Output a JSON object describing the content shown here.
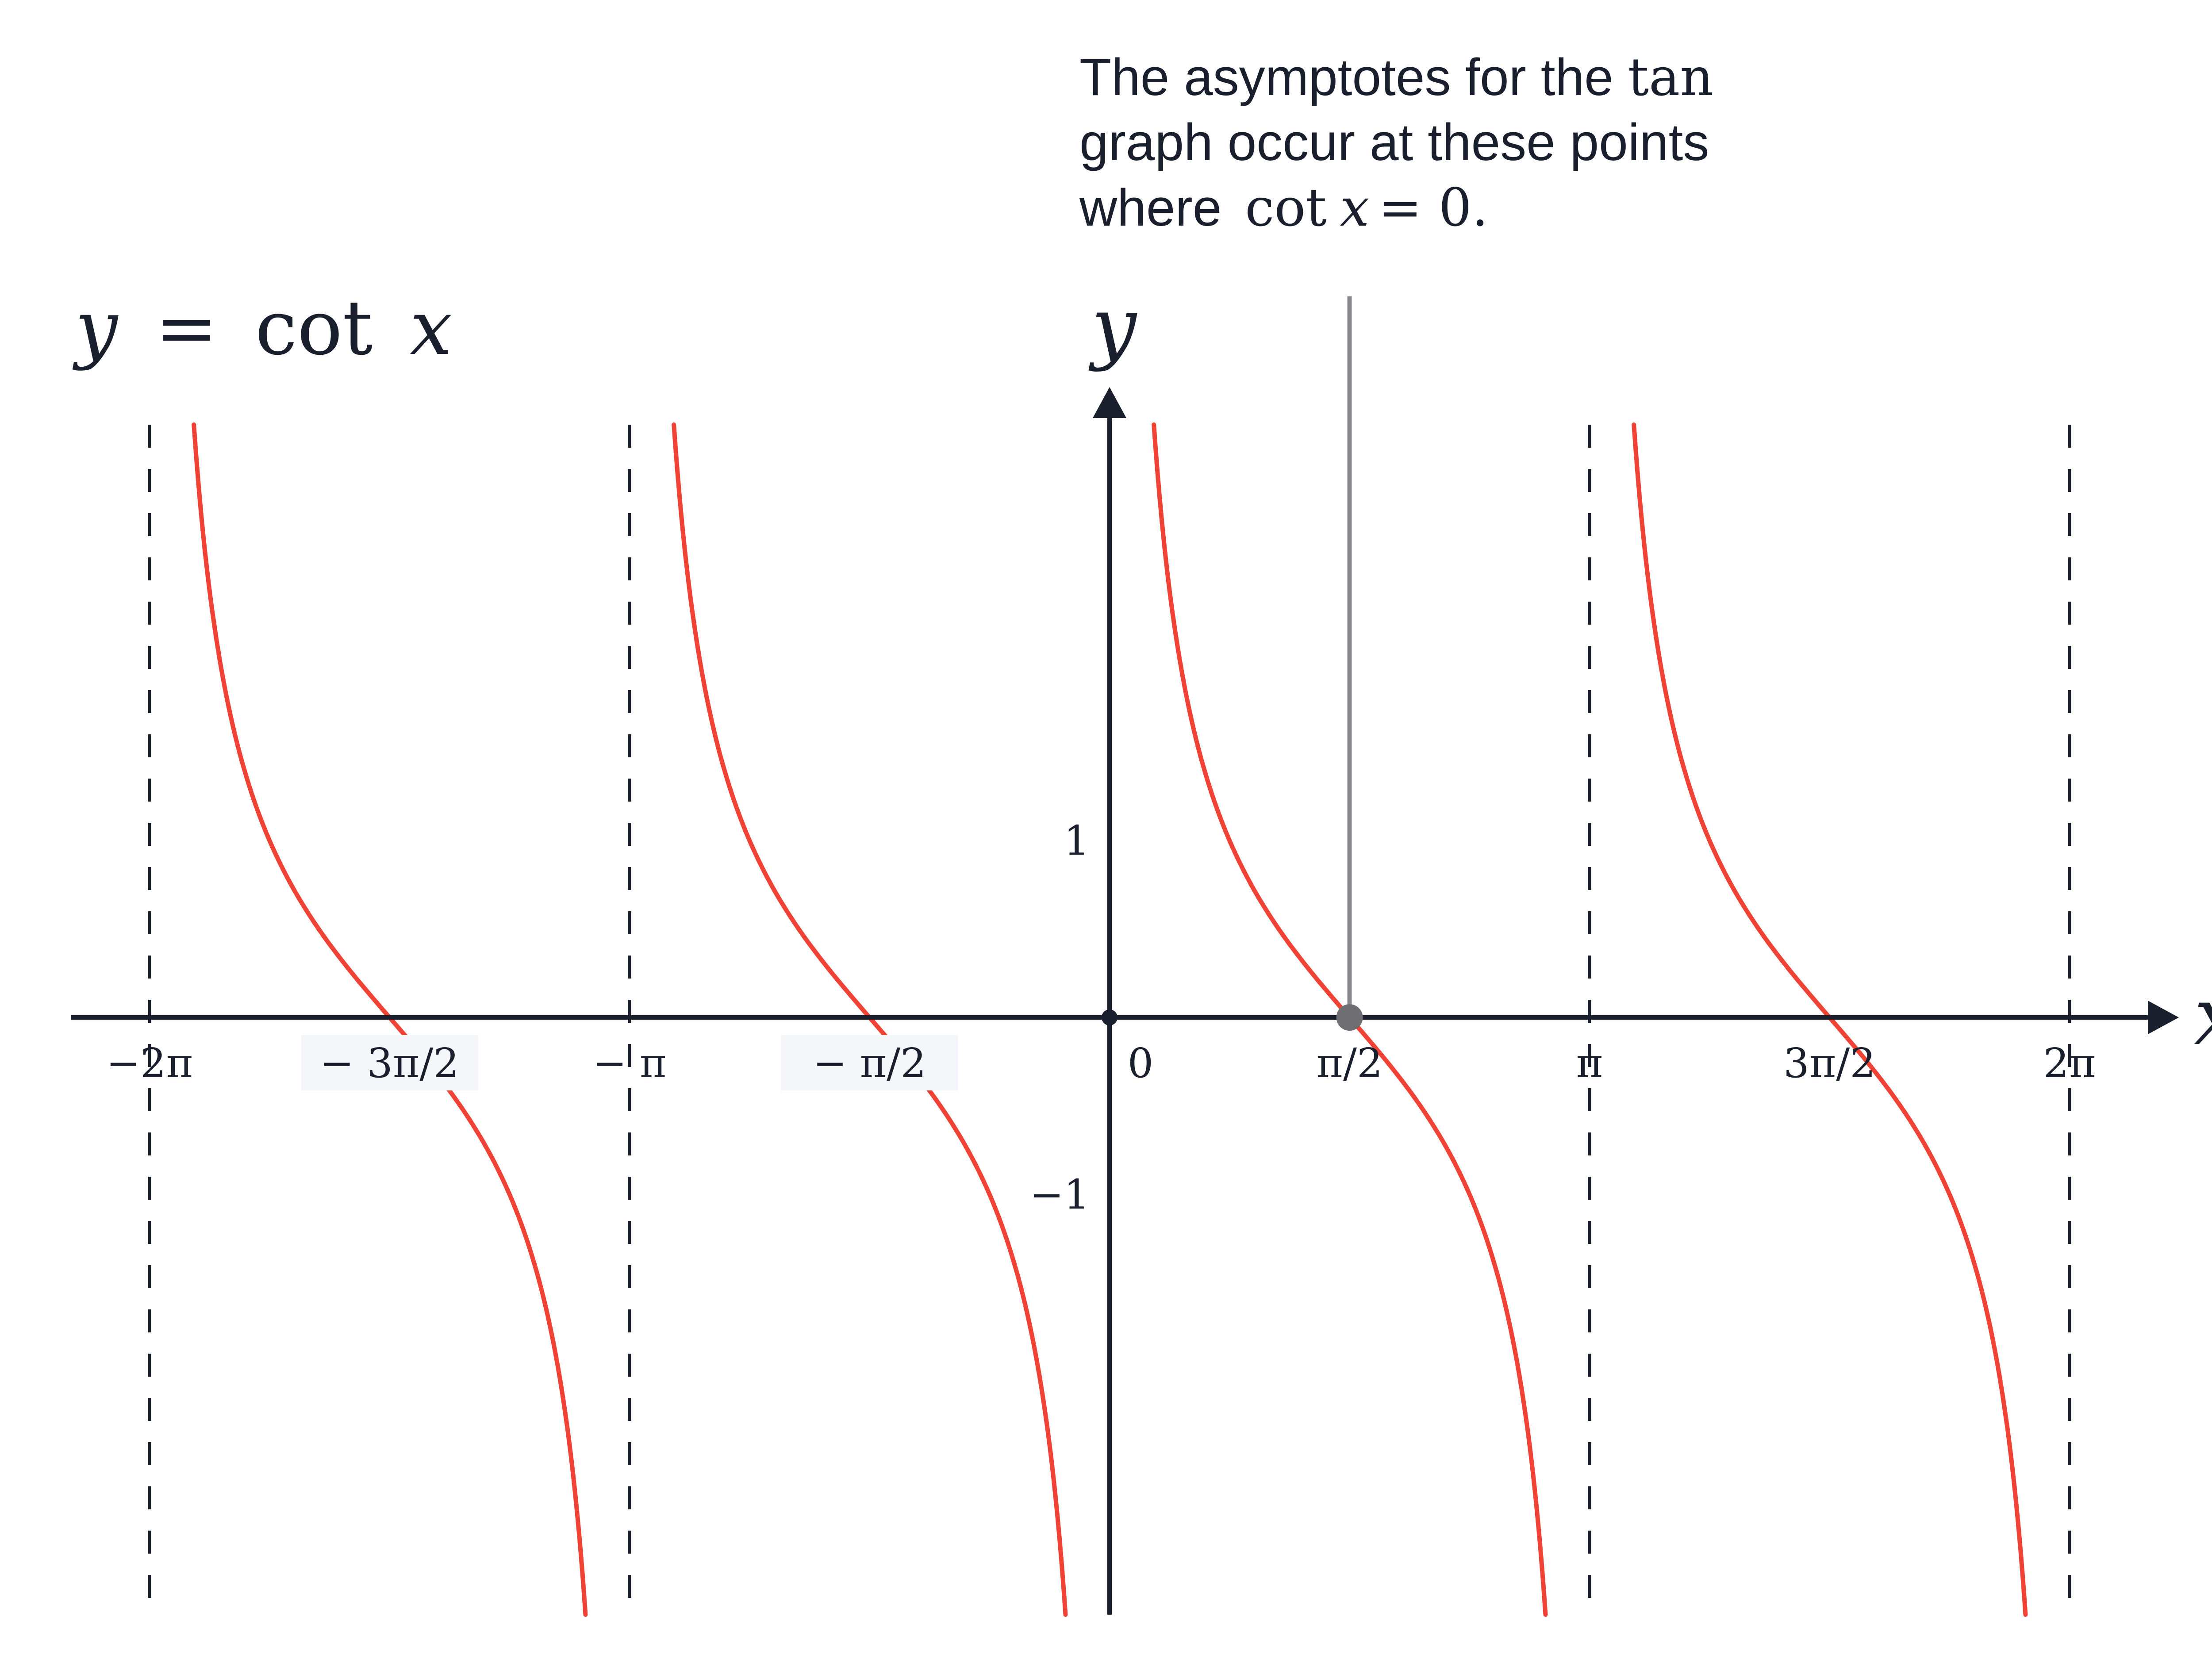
{
  "chart_data": {
    "type": "line",
    "title": "y = cot x",
    "title_parts": {
      "y": "y",
      "eq": "=",
      "fn": "cot",
      "x": "x"
    },
    "xlabel": "x",
    "ylabel": "y",
    "function": "cot",
    "xlim": [
      -6.45,
      6.35
    ],
    "ylim": [
      -3.4,
      3.4
    ],
    "x_ticks": [
      {
        "value": -6.283185,
        "label": "−2π"
      },
      {
        "value": -4.712389,
        "label": "− 3π/2"
      },
      {
        "value": -3.141593,
        "label": "− π"
      },
      {
        "value": -1.570796,
        "label": "− π/2"
      },
      {
        "value": 0,
        "label": "0"
      },
      {
        "value": 1.570796,
        "label": "π/2"
      },
      {
        "value": 3.141593,
        "label": "π"
      },
      {
        "value": 4.712389,
        "label": "3π/2"
      },
      {
        "value": 6.283185,
        "label": "2π"
      }
    ],
    "y_ticks": [
      {
        "value": 1,
        "label": "1"
      },
      {
        "value": -1,
        "label": "−1"
      }
    ],
    "asymptotes": [
      -6.283185,
      -3.141593,
      0,
      3.141593,
      6.283185
    ],
    "series": [
      {
        "branch_start": -6.283185,
        "branch_end": -3.141593
      },
      {
        "branch_start": -3.141593,
        "branch_end": 0
      },
      {
        "branch_start": 0,
        "branch_end": 3.141593
      },
      {
        "branch_start": 3.141593,
        "branch_end": 6.283185
      }
    ],
    "highlight_point": {
      "x": 1.570796,
      "y": 0
    },
    "grid": false,
    "annotation": {
      "line1_text": "The asymptotes for the ",
      "line1_math": "tan",
      "line2": "graph occur at these points",
      "line3_text": "where ",
      "line3_fn": "cot",
      "line3_var": "x",
      "line3_eq": "= 0."
    }
  },
  "colors": {
    "curve": "#f04235",
    "axis": "#1a1f2e",
    "asymptote": "#1a1f2e",
    "marker_line": "#8a8a8e",
    "marker_point": "#707074",
    "label_bg": "#f4f6f9"
  }
}
